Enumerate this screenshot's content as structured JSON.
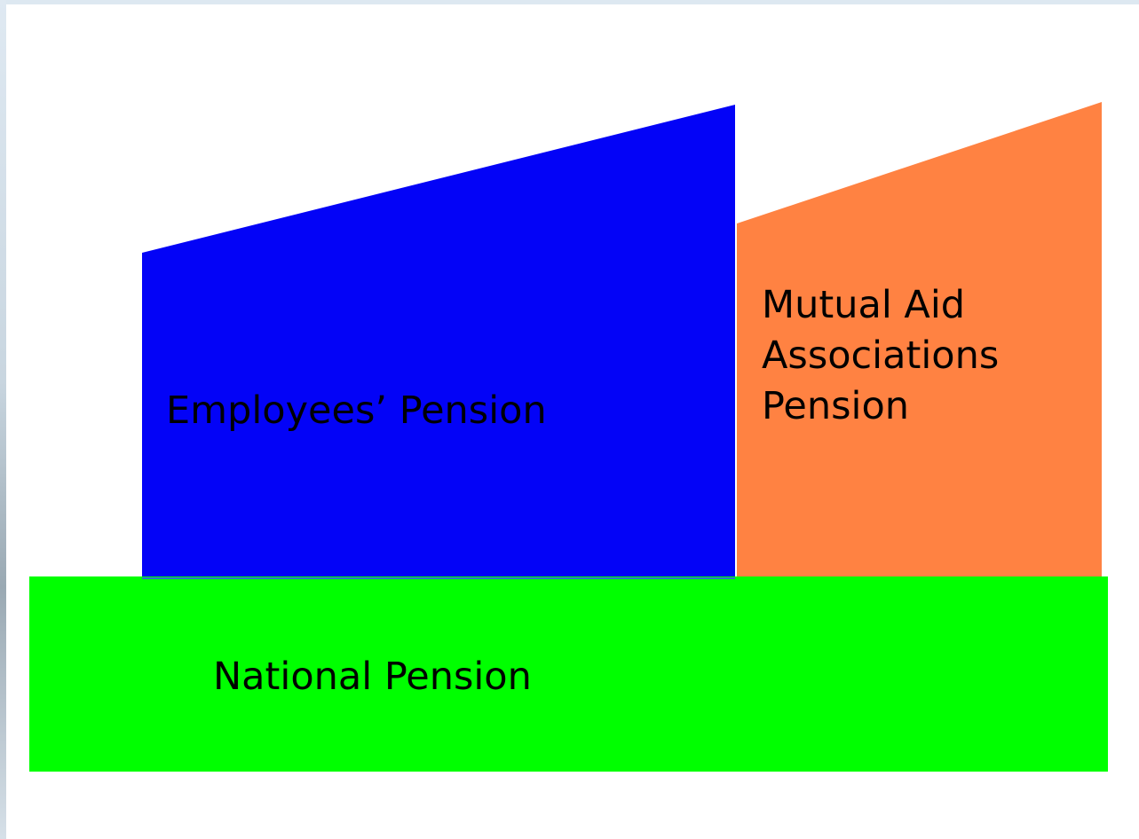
{
  "nodes": [
    {
      "label": "Employees’ Pension"
    },
    {
      "label_lines": [
        "Mutual Aid",
        "Associations",
        "Pension"
      ]
    },
    {
      "label": "National Pension"
    }
  ]
}
